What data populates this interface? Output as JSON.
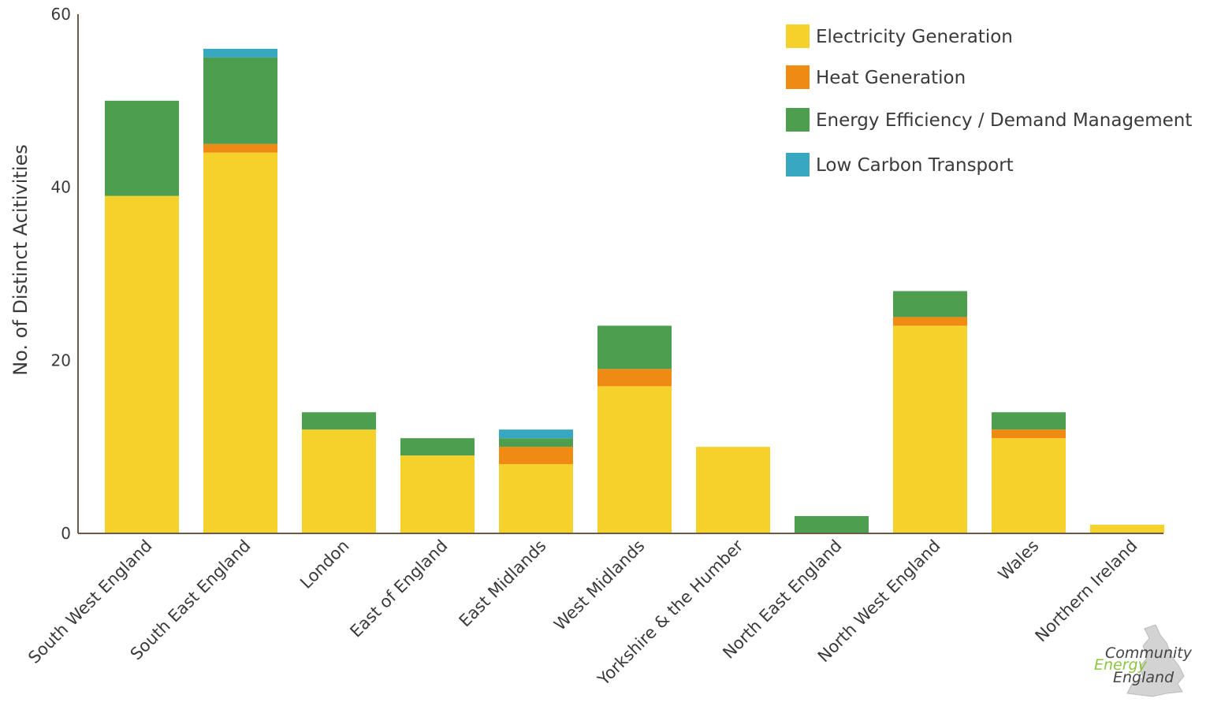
{
  "chart_data": {
    "type": "bar",
    "stacked": true,
    "categories": [
      "South West England",
      "South East England",
      "London",
      "East of England",
      "East Midlands",
      "West Midlands",
      "Yorkshire & the Humber",
      "North East England",
      "North West England",
      "Wales",
      "Northern Ireland"
    ],
    "series": [
      {
        "name": "Electricity Generation",
        "color": "#f5d22b",
        "values": [
          39,
          44,
          12,
          9,
          8,
          17,
          10,
          0,
          24,
          11,
          1
        ]
      },
      {
        "name": "Heat Generation",
        "color": "#ef8a12",
        "values": [
          0,
          1,
          0,
          0,
          2,
          2,
          0,
          0,
          1,
          1,
          0
        ]
      },
      {
        "name": "Energy Efficiency / Demand Management",
        "color": "#4d9e4f",
        "values": [
          11,
          10,
          2,
          2,
          1,
          5,
          0,
          2,
          3,
          2,
          0
        ]
      },
      {
        "name": "Low Carbon Transport",
        "color": "#37a8bf",
        "values": [
          0,
          1,
          0,
          0,
          1,
          0,
          0,
          0,
          0,
          0,
          0
        ]
      }
    ],
    "ylabel": "No. of Distinct Acitivities",
    "xlabel": "",
    "ylim": [
      0,
      60
    ],
    "yticks": [
      "0",
      "20",
      "40",
      "60"
    ],
    "grid": false,
    "legend_position": "top-right"
  },
  "logo": {
    "line1": "Community",
    "line2": "Energy",
    "line3": "England",
    "color_dark": "#444444",
    "color_green": "#8cc63f"
  }
}
